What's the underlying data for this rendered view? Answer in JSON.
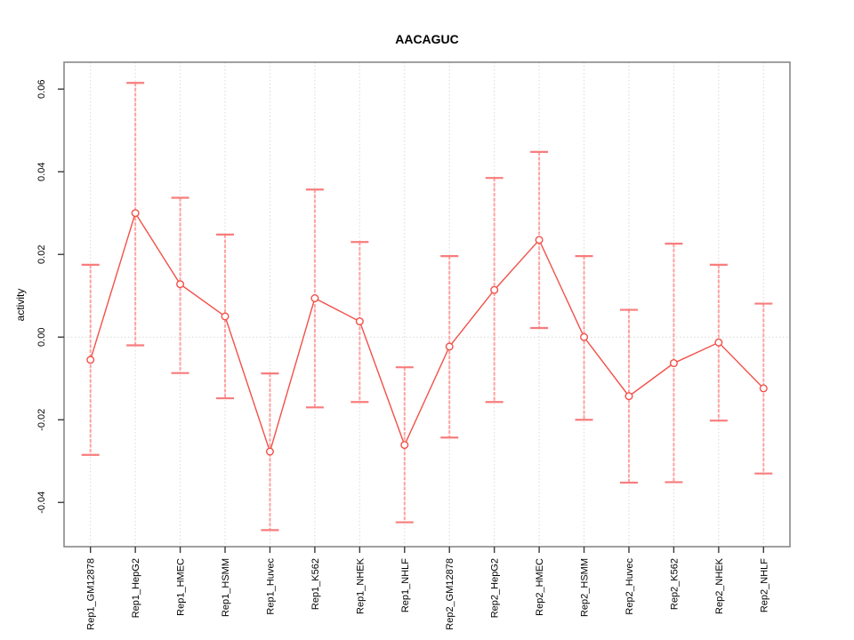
{
  "figure": {
    "title": "AACAGUC",
    "ylabel": "activity"
  },
  "chart_data": {
    "type": "line",
    "title": "AACAGUC",
    "xlabel": "",
    "ylabel": "activity",
    "categories": [
      "Rep1_GM12878",
      "Rep1_HepG2",
      "Rep1_HMEC",
      "Rep1_HSMM",
      "Rep1_Huvec",
      "Rep1_K562",
      "Rep1_NHEK",
      "Rep1_NHLF",
      "Rep2_GM12878",
      "Rep2_HepG2",
      "Rep2_HMEC",
      "Rep2_HSMM",
      "Rep2_Huvec",
      "Rep2_K562",
      "Rep2_NHEK",
      "Rep2_NHLF"
    ],
    "series": [
      {
        "name": "activity",
        "values": [
          -0.0055,
          0.03,
          0.0128,
          0.005,
          -0.0277,
          0.0094,
          0.0038,
          -0.0261,
          -0.0023,
          0.0114,
          0.0235,
          0.0,
          -0.0143,
          -0.0063,
          -0.0013,
          -0.0124
        ],
        "error_upper": [
          0.0175,
          0.0615,
          0.0337,
          0.0248,
          -0.0088,
          0.0357,
          0.023,
          -0.0073,
          0.0196,
          0.0385,
          0.0448,
          0.0196,
          0.0066,
          0.0226,
          0.0175,
          0.0081
        ],
        "error_lower": [
          -0.0285,
          -0.002,
          -0.0087,
          -0.0148,
          -0.0467,
          -0.017,
          -0.0157,
          -0.0448,
          -0.0243,
          -0.0157,
          0.0022,
          -0.02,
          -0.0352,
          -0.0351,
          -0.0202,
          -0.033
        ]
      }
    ],
    "yticks": [
      -0.04,
      -0.02,
      0.0,
      0.02,
      0.04,
      0.06
    ],
    "ylim": [
      -0.0507,
      0.0665
    ],
    "grid": "vertical dotted gridline per category; horizontal dotted line at y=0",
    "legend": "none",
    "marker": "open-circle",
    "colors": {
      "line": "#f25048",
      "marker": "#f25048",
      "error_bar": "#ffa2a2",
      "error_cap": "#f87c7c",
      "grid": "#d9d9d9",
      "box": "#898989",
      "tick": "#3a3a3a",
      "text": "#000000",
      "background": "#ffffff"
    }
  }
}
